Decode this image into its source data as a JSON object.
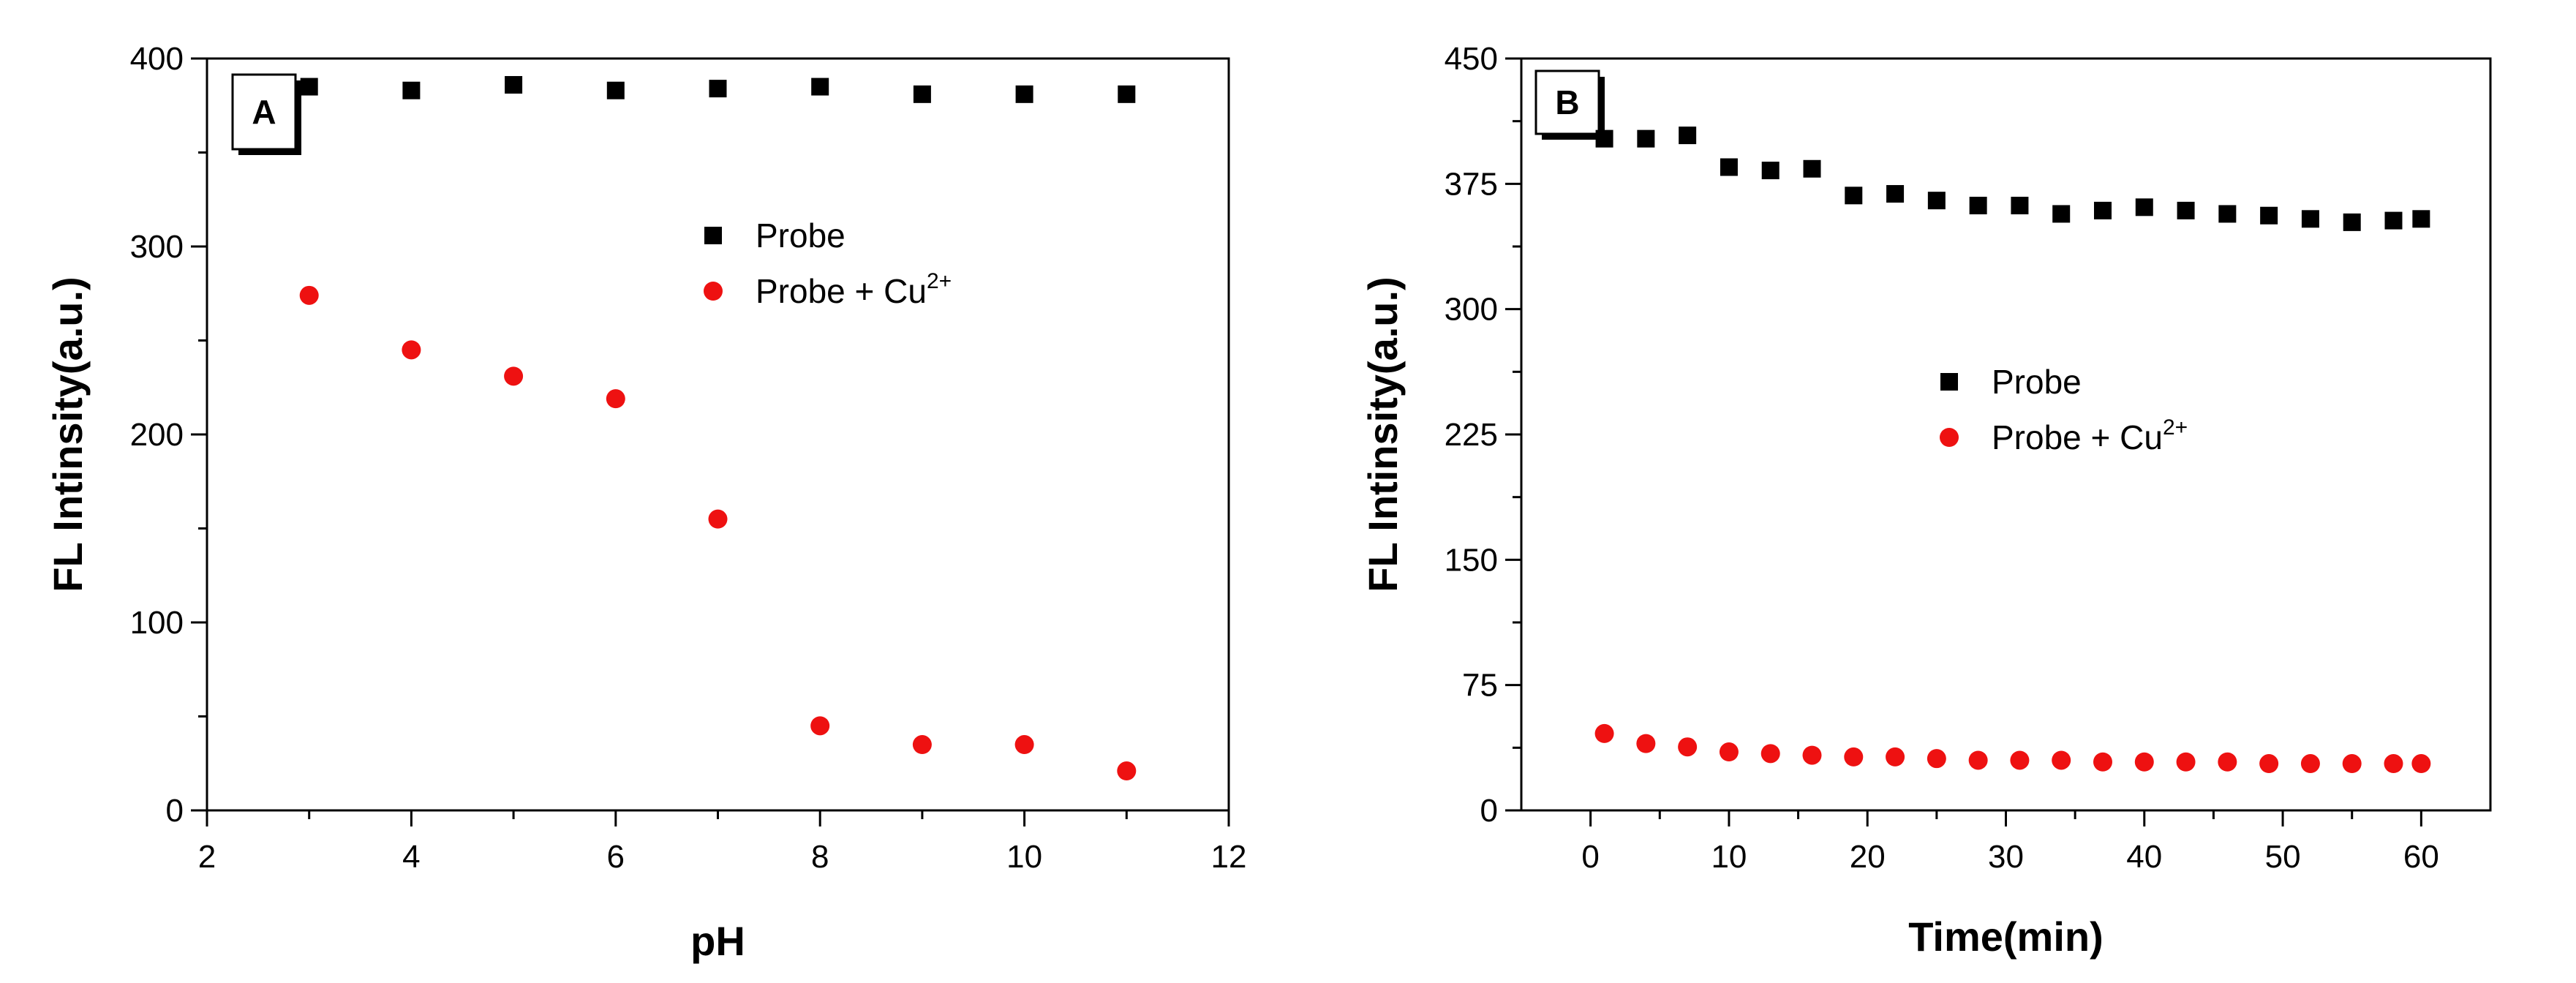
{
  "colors": {
    "probe": "#000000",
    "probe_cu": "#ee1111"
  },
  "chart_data": [
    {
      "type": "scatter",
      "panel_label": "A",
      "xlabel": "pH",
      "ylabel": "FL Intinsity(a.u.)",
      "xlim": [
        2,
        12
      ],
      "ylim": [
        0,
        400
      ],
      "xticks": [
        2,
        4,
        6,
        8,
        10,
        12
      ],
      "yticks": [
        0,
        100,
        200,
        300,
        400
      ],
      "grid": false,
      "legend_position": "upper-right",
      "series": [
        {
          "name": "Probe",
          "marker": "square",
          "color": "#000000",
          "x": [
            3,
            4,
            5,
            6,
            7,
            8,
            9,
            10,
            11
          ],
          "y": [
            385,
            383,
            386,
            383,
            384,
            385,
            381,
            381,
            381
          ]
        },
        {
          "name": "Probe + Cu",
          "name_sup": "2+",
          "marker": "circle",
          "color": "#ee1111",
          "x": [
            3,
            4,
            5,
            6,
            7,
            8,
            9,
            10,
            11
          ],
          "y": [
            274,
            245,
            231,
            219,
            155,
            45,
            35,
            35,
            21
          ]
        }
      ]
    },
    {
      "type": "scatter",
      "panel_label": "B",
      "xlabel": "Time(min)",
      "ylabel": "FL Intinsity(a.u.)",
      "xlim": [
        -5,
        65
      ],
      "ylim": [
        0,
        450
      ],
      "xticks": [
        0,
        10,
        20,
        30,
        40,
        50,
        60
      ],
      "yticks": [
        0,
        75,
        150,
        225,
        300,
        375,
        450
      ],
      "grid": false,
      "legend_position": "center",
      "series": [
        {
          "name": "Probe",
          "marker": "square",
          "color": "#000000",
          "x": [
            1,
            4,
            7,
            10,
            13,
            16,
            19,
            22,
            25,
            28,
            31,
            34,
            37,
            40,
            43,
            46,
            49,
            52,
            55,
            58,
            60
          ],
          "y": [
            402,
            402,
            404,
            385,
            383,
            384,
            368,
            369,
            365,
            362,
            362,
            357,
            359,
            361,
            359,
            357,
            356,
            354,
            352,
            353,
            354
          ]
        },
        {
          "name": "Probe + Cu",
          "name_sup": "2+",
          "marker": "circle",
          "color": "#ee1111",
          "x": [
            1,
            4,
            7,
            10,
            13,
            16,
            19,
            22,
            25,
            28,
            31,
            34,
            37,
            40,
            43,
            46,
            49,
            52,
            55,
            58,
            60
          ],
          "y": [
            46,
            40,
            38,
            35,
            34,
            33,
            32,
            32,
            31,
            30,
            30,
            30,
            29,
            29,
            29,
            29,
            28,
            28,
            28,
            28,
            28
          ]
        }
      ]
    }
  ]
}
